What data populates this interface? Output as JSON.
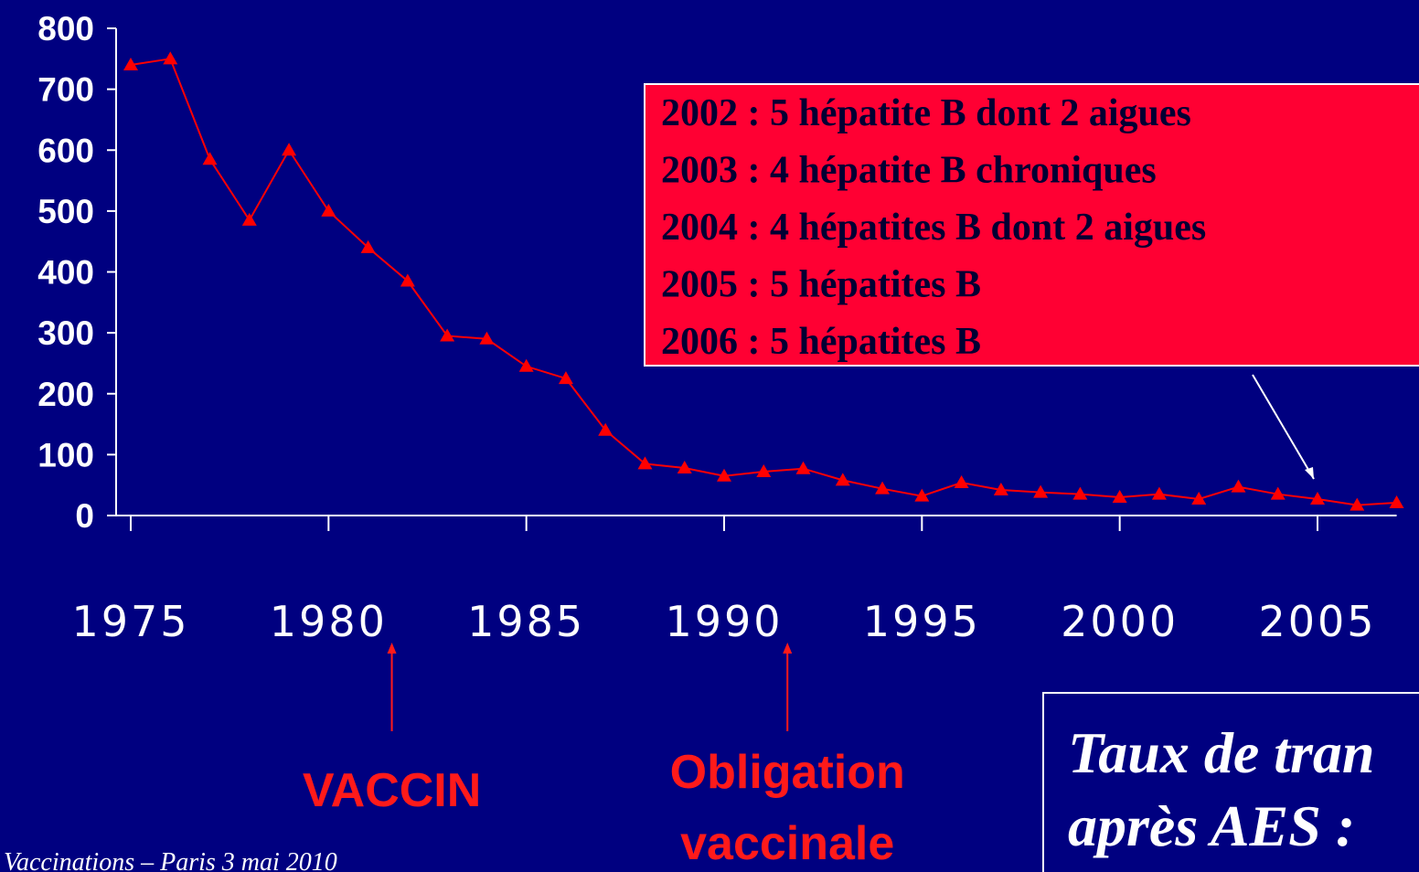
{
  "chart_data": {
    "type": "line",
    "x": [
      1975,
      1976,
      1977,
      1978,
      1979,
      1980,
      1981,
      1982,
      1983,
      1984,
      1985,
      1986,
      1987,
      1988,
      1989,
      1990,
      1991,
      1992,
      1993,
      1994,
      1995,
      1996,
      1997,
      1998,
      1999,
      2000,
      2001,
      2002,
      2003,
      2004,
      2005,
      2006,
      2007
    ],
    "series": [
      {
        "color": "#ff0000",
        "values": [
          740,
          750,
          585,
          485,
          600,
          500,
          440,
          385,
          295,
          290,
          245,
          225,
          140,
          85,
          78,
          65,
          72,
          77,
          58,
          44,
          32,
          54,
          42,
          38,
          35,
          30,
          35,
          27,
          47,
          35,
          27,
          17,
          21
        ]
      }
    ],
    "xlim": [
      1975,
      2007
    ],
    "ylim": [
      0,
      800
    ],
    "xticks": [
      1975,
      1980,
      1985,
      1990,
      1995,
      2000,
      2005
    ],
    "yticks": [
      0,
      100,
      200,
      300,
      400,
      500,
      600,
      700,
      800
    ],
    "callout": {
      "lines": [
        "2002 : 5 hépatite B dont 2 aigues",
        "2003 : 4 hépatite B chroniques",
        "2004 : 4 hépatites B dont 2 aigues",
        "2005 : 5 hépatites B",
        "2006 : 5 hépatites B"
      ],
      "x": 2005,
      "color": "#ff0033"
    },
    "annotations": [
      {
        "text": "VACCIN",
        "x": 1981.6
      },
      {
        "text": [
          "Obligation",
          "vaccinale"
        ],
        "x": 1991.6
      }
    ],
    "note": [
      "Taux de tran",
      "après AES : "
    ],
    "footer": "Vaccinations – Paris 3 mai 2010"
  }
}
